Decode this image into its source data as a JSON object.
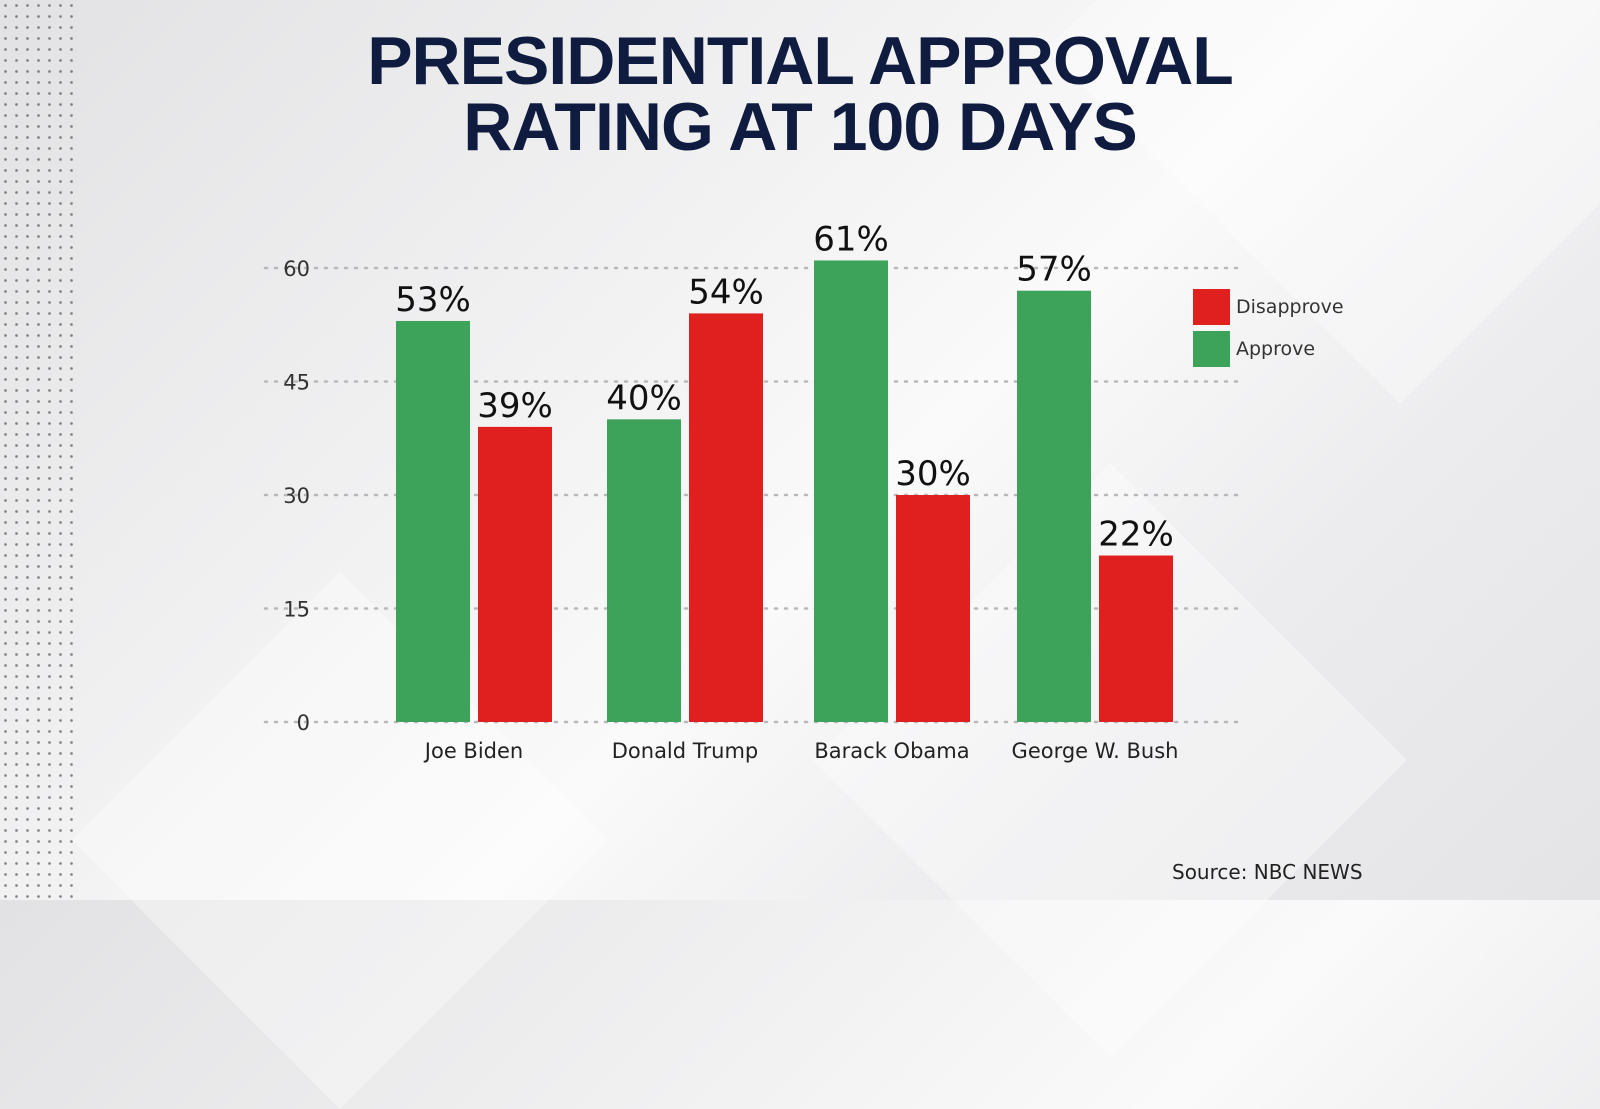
{
  "title_lines": [
    "PRESIDENTIAL APPROVAL",
    "RATING AT 100 DAYS"
  ],
  "source": "Source: NBC NEWS",
  "chart_data": {
    "type": "bar",
    "title": "PRESIDENTIAL APPROVAL RATING AT 100 DAYS",
    "categories": [
      "Joe Biden",
      "Donald Trump",
      "Barack Obama",
      "George W. Bush"
    ],
    "series": [
      {
        "name": "Approve",
        "values": [
          53,
          40,
          61,
          57
        ],
        "labels": [
          "53%",
          "40%",
          "61%",
          "57%"
        ],
        "color": "#3ea35a"
      },
      {
        "name": "Disapprove",
        "values": [
          39,
          54,
          30,
          22
        ],
        "labels": [
          "39%",
          "54%",
          "30%",
          "22%"
        ],
        "color": "#e01f1f"
      }
    ],
    "yticks": [
      0,
      15,
      30,
      45,
      60
    ],
    "ylim": [
      0,
      60
    ],
    "grid": "dotted horizontal",
    "legend": {
      "placement": "top-right",
      "entries": [
        "Disapprove",
        "Approve"
      ]
    },
    "xlabel": "",
    "ylabel": ""
  }
}
